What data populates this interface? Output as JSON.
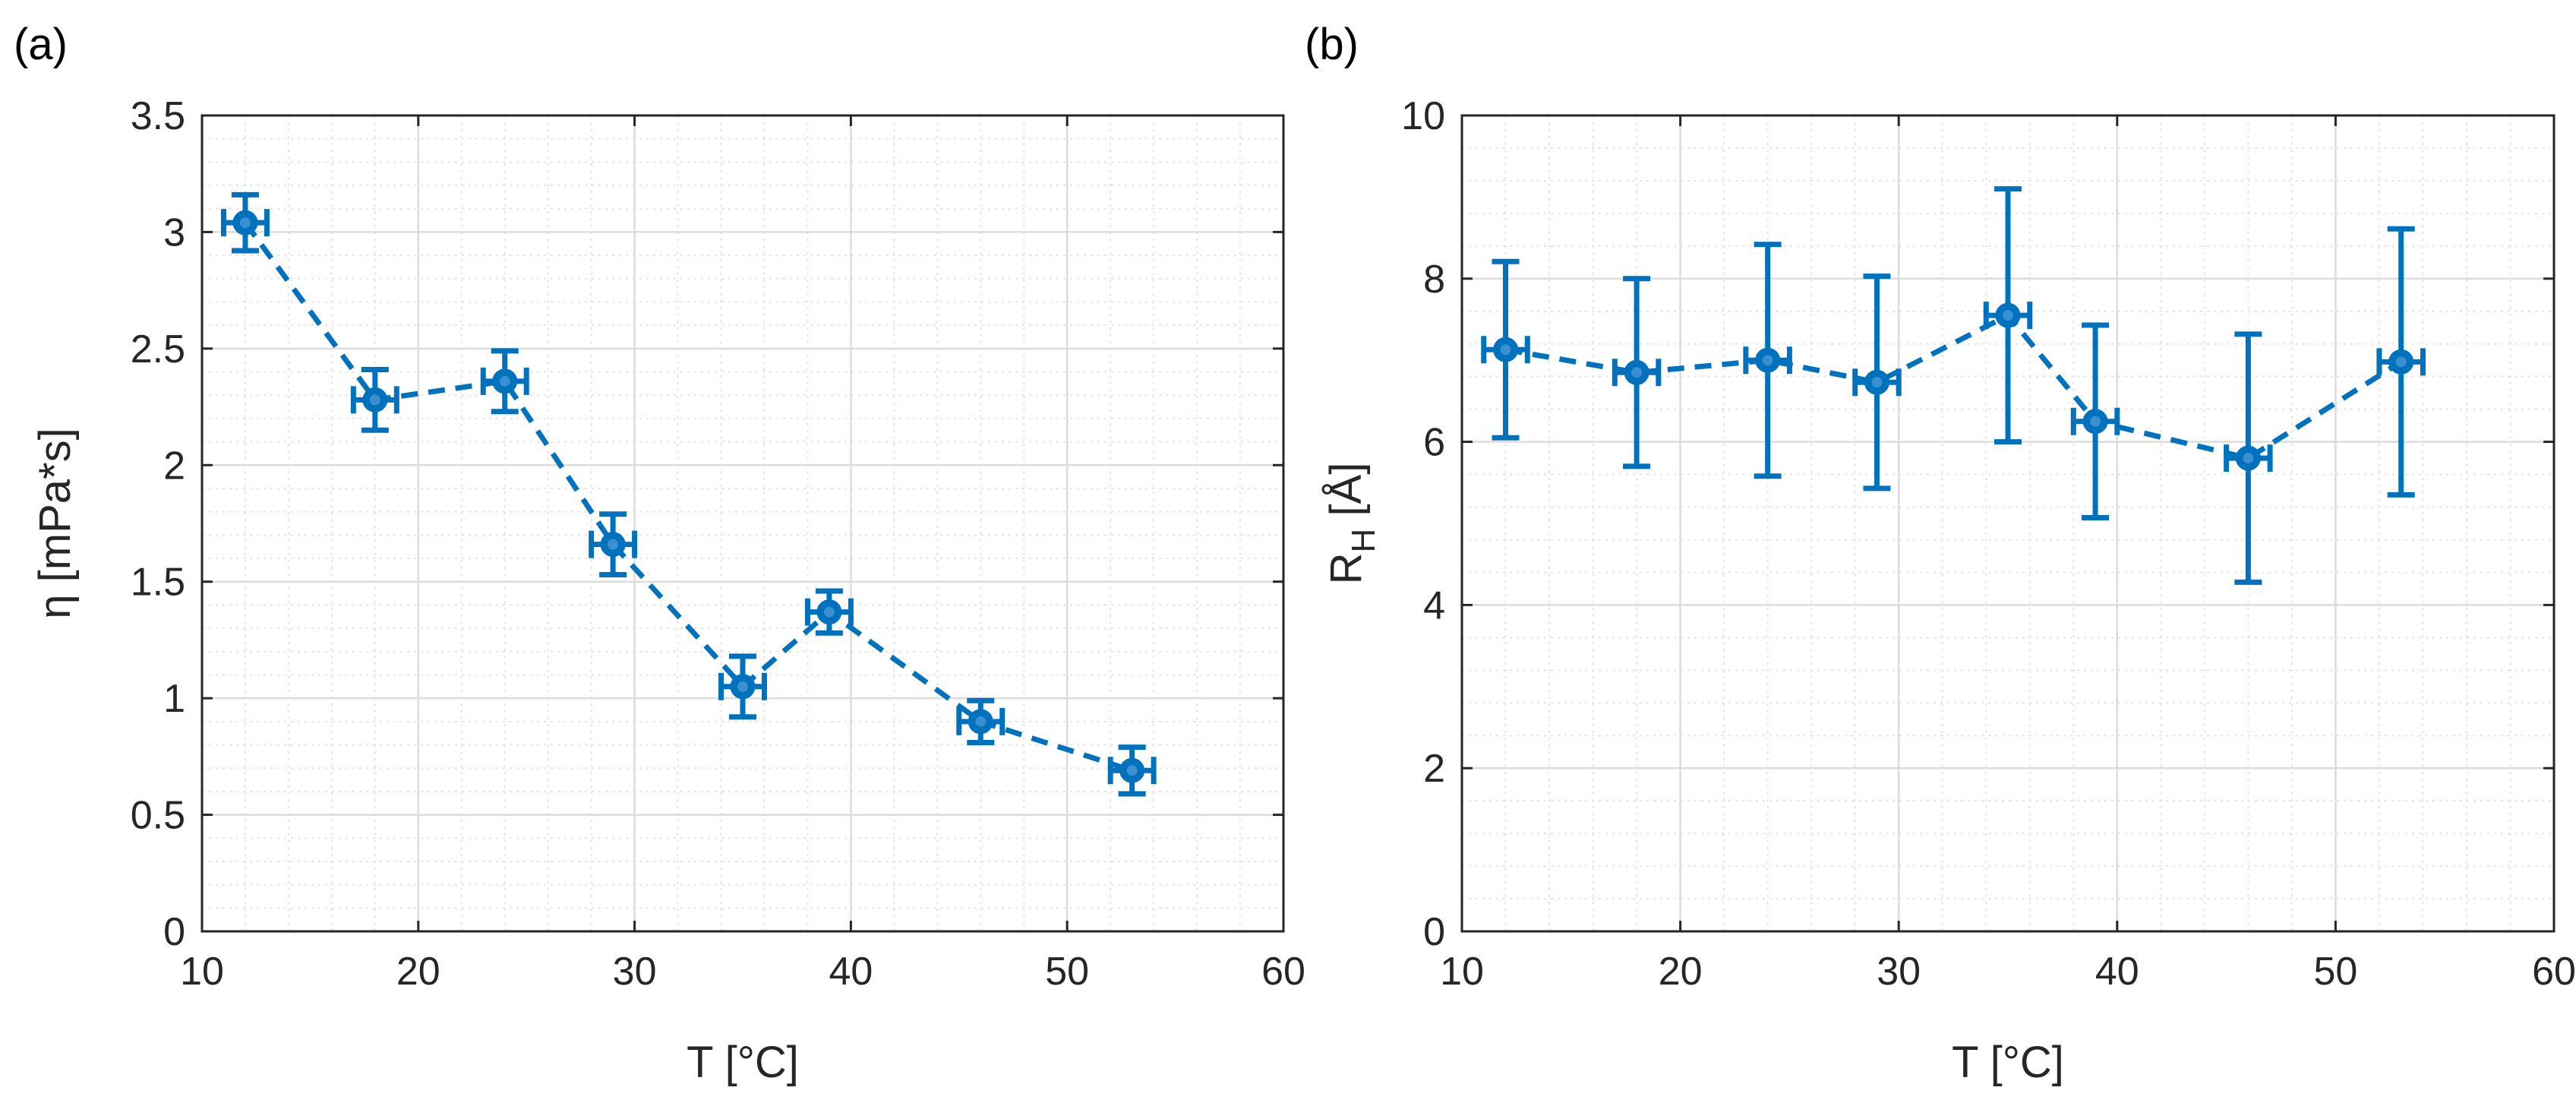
{
  "colors": {
    "series": "#0072BD",
    "grid_major": "#dcdcdc",
    "grid_minor": "#e4e4e4",
    "axis": "#262626"
  },
  "chart_data": [
    {
      "panel_label": "(a)",
      "type": "line",
      "style": "dashed line with markers and x/y error bars",
      "title": "",
      "xlabel": "T [°C]",
      "ylabel_main": "η [mPa*s]",
      "ylabel_subscript": "",
      "xlim": [
        10,
        60
      ],
      "ylim": [
        0,
        3.5
      ],
      "xticks": [
        10,
        20,
        30,
        40,
        50,
        60
      ],
      "xtick_labels": [
        "10",
        "20",
        "30",
        "40",
        "50",
        "60"
      ],
      "yticks": [
        0,
        0.5,
        1,
        1.5,
        2,
        2.5,
        3,
        3.5
      ],
      "ytick_labels": [
        "0",
        "0.5",
        "1",
        "1.5",
        "2",
        "2.5",
        "3",
        "3.5"
      ],
      "grid": true,
      "series": [
        {
          "name": "η",
          "x": [
            12,
            18,
            24,
            29,
            35,
            39,
            46,
            53
          ],
          "y": [
            3.04,
            2.28,
            2.36,
            1.66,
            1.05,
            1.37,
            0.9,
            0.69
          ],
          "y_err": [
            0.12,
            0.13,
            0.13,
            0.13,
            0.13,
            0.09,
            0.09,
            0.1
          ],
          "x_err": [
            1,
            1,
            1,
            1,
            1,
            1,
            1,
            1
          ]
        }
      ]
    },
    {
      "panel_label": "(b)",
      "type": "line",
      "style": "dashed line with markers and x/y error bars",
      "title": "",
      "xlabel": "T [°C]",
      "ylabel_main": "R",
      "ylabel_subscript": "H",
      "ylabel_suffix": " [Å]",
      "xlim": [
        10,
        60
      ],
      "ylim": [
        0,
        10
      ],
      "xticks": [
        10,
        20,
        30,
        40,
        50,
        60
      ],
      "xtick_labels": [
        "10",
        "20",
        "30",
        "40",
        "50",
        "60"
      ],
      "yticks": [
        0,
        2,
        4,
        6,
        8,
        10
      ],
      "ytick_labels": [
        "0",
        "2",
        "4",
        "6",
        "8",
        "10"
      ],
      "grid": true,
      "series": [
        {
          "name": "R_H",
          "x": [
            12,
            18,
            24,
            29,
            35,
            39,
            46,
            53
          ],
          "y": [
            7.13,
            6.85,
            7.0,
            6.73,
            7.55,
            6.25,
            5.8,
            6.98
          ],
          "y_err": [
            1.08,
            1.15,
            1.42,
            1.3,
            1.55,
            1.18,
            1.52,
            1.63
          ],
          "x_err": [
            1,
            1,
            1,
            1,
            1,
            1,
            1,
            1
          ]
        }
      ]
    }
  ]
}
